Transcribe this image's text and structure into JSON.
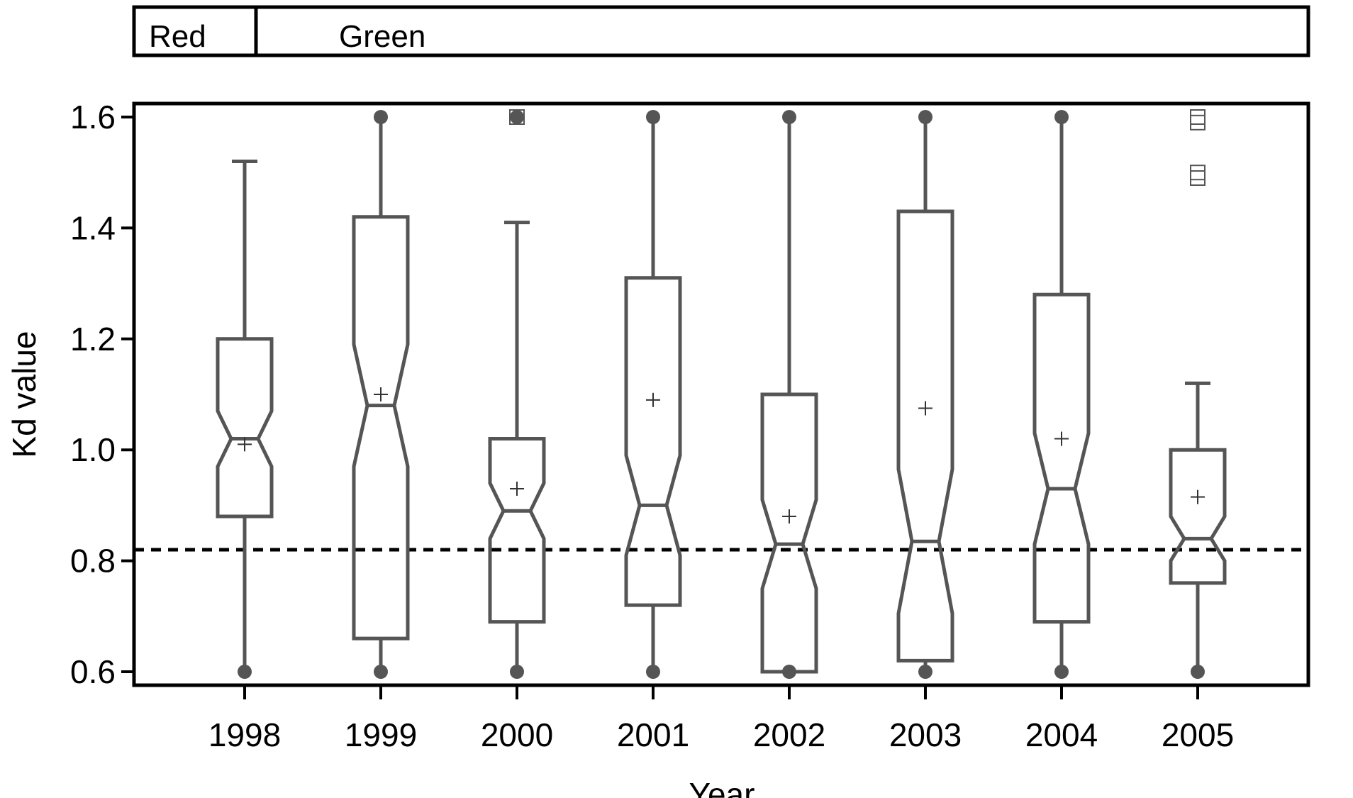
{
  "chart_data": {
    "type": "boxplot",
    "title": "",
    "xlabel": "Year",
    "ylabel": "Kd value",
    "ylim": [
      0.58,
      1.63
    ],
    "yticks": [
      "0.6",
      "0.8",
      "1.0",
      "1.2",
      "1.4",
      "1.6"
    ],
    "reference_line": 0.82,
    "groups": [
      {
        "label": "Red",
        "categories": [
          "1998"
        ]
      },
      {
        "label": "Green",
        "categories": [
          "1999",
          "2000",
          "2001",
          "2002",
          "2003",
          "2004",
          "2005"
        ]
      }
    ],
    "boxes": [
      {
        "year": "1998",
        "min": 0.6,
        "q1": 0.88,
        "median": 1.02,
        "q3": 1.2,
        "max": 1.52,
        "mean": 1.01,
        "notch_low": 0.97,
        "notch_high": 1.07,
        "cap_min": false,
        "cap_max": true,
        "min_dot": true,
        "max_dot": false,
        "outliers": []
      },
      {
        "year": "1999",
        "min": 0.6,
        "q1": 0.66,
        "median": 1.08,
        "q3": 1.42,
        "max": 1.6,
        "mean": 1.1,
        "notch_low": 0.97,
        "notch_high": 1.19,
        "cap_min": false,
        "cap_max": false,
        "min_dot": true,
        "max_dot": true,
        "outliers": []
      },
      {
        "year": "2000",
        "min": 0.6,
        "q1": 0.69,
        "median": 0.89,
        "q3": 1.02,
        "max": 1.41,
        "mean": 0.93,
        "notch_low": 0.84,
        "notch_high": 0.94,
        "cap_min": false,
        "cap_max": true,
        "min_dot": true,
        "max_dot": true,
        "outliers": [
          1.6
        ]
      },
      {
        "year": "2001",
        "min": 0.6,
        "q1": 0.72,
        "median": 0.9,
        "q3": 1.31,
        "max": 1.6,
        "mean": 1.09,
        "notch_low": 0.81,
        "notch_high": 0.99,
        "cap_min": false,
        "cap_max": false,
        "min_dot": true,
        "max_dot": true,
        "outliers": []
      },
      {
        "year": "2002",
        "min": 0.6,
        "q1": 0.6,
        "median": 0.83,
        "q3": 1.1,
        "max": 1.6,
        "mean": 0.88,
        "notch_low": 0.75,
        "notch_high": 0.91,
        "cap_min": false,
        "cap_max": false,
        "min_dot": true,
        "max_dot": true,
        "outliers": []
      },
      {
        "year": "2003",
        "min": 0.6,
        "q1": 0.62,
        "median": 0.835,
        "q3": 1.43,
        "max": 1.6,
        "mean": 1.075,
        "notch_low": 0.705,
        "notch_high": 0.965,
        "cap_min": false,
        "cap_max": false,
        "min_dot": true,
        "max_dot": true,
        "outliers": []
      },
      {
        "year": "2004",
        "min": 0.6,
        "q1": 0.69,
        "median": 0.93,
        "q3": 1.28,
        "max": 1.6,
        "mean": 1.02,
        "notch_low": 0.83,
        "notch_high": 1.03,
        "cap_min": false,
        "cap_max": false,
        "min_dot": true,
        "max_dot": true,
        "outliers": []
      },
      {
        "year": "2005",
        "min": 0.6,
        "q1": 0.76,
        "median": 0.84,
        "q3": 1.0,
        "max": 1.12,
        "mean": 0.915,
        "notch_low": 0.8,
        "notch_high": 0.88,
        "cap_min": false,
        "cap_max": true,
        "min_dot": true,
        "max_dot": false,
        "outliers": [
          1.6,
          1.59,
          1.5,
          1.49
        ]
      }
    ]
  }
}
